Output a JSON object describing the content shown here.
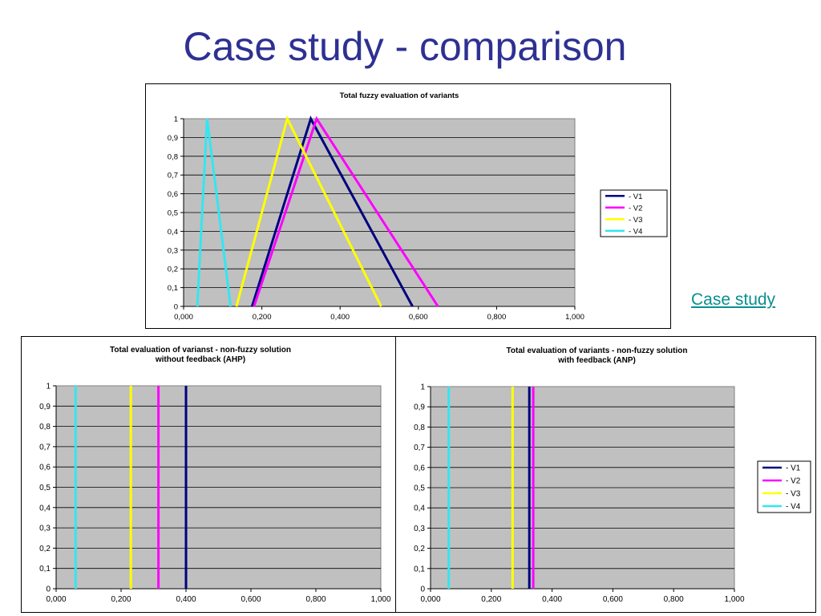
{
  "slide": {
    "title": "Case study - comparison",
    "link_text": "Case study"
  },
  "chart_data": [
    {
      "type": "line",
      "title": "Total fuzzy evaluation of variants",
      "subtitle": "",
      "xlabel": "",
      "ylabel": "",
      "xlim": [
        0,
        1
      ],
      "ylim": [
        0,
        1
      ],
      "x_ticks": [
        "0,000",
        "0,200",
        "0,400",
        "0,600",
        "0,800",
        "1,000"
      ],
      "y_ticks": [
        "0",
        "0,1",
        "0,2",
        "0,3",
        "0,4",
        "0,5",
        "0,6",
        "0,7",
        "0,8",
        "0,9",
        "1"
      ],
      "plot_background": "#c0c0c0",
      "grid": "horizontal",
      "legend": "right",
      "series": [
        {
          "name": "- V1",
          "color": "#000080",
          "x": [
            0.175,
            0.325,
            0.585
          ],
          "y": [
            0,
            1,
            0
          ]
        },
        {
          "name": "- V2",
          "color": "#ff00ff",
          "x": [
            0.18,
            0.34,
            0.65
          ],
          "y": [
            0,
            1,
            0
          ]
        },
        {
          "name": "- V3",
          "color": "#ffff00",
          "x": [
            0.135,
            0.265,
            0.505
          ],
          "y": [
            0,
            1,
            0
          ]
        },
        {
          "name": "- V4",
          "color": "#33e6f2",
          "x": [
            0.035,
            0.06,
            0.12
          ],
          "y": [
            0,
            1,
            0
          ]
        }
      ]
    },
    {
      "type": "line",
      "title": "Total evaluation of varianst - non-fuzzy solution",
      "subtitle": "without feedback (AHP)",
      "xlabel": "",
      "ylabel": "",
      "xlim": [
        0,
        1
      ],
      "ylim": [
        0,
        1
      ],
      "x_ticks": [
        "0,000",
        "0,200",
        "0,400",
        "0,600",
        "0,800",
        "1,000"
      ],
      "y_ticks": [
        "0",
        "0,1",
        "0,2",
        "0,3",
        "0,4",
        "0,5",
        "0,6",
        "0,7",
        "0,8",
        "0,9",
        "1"
      ],
      "plot_background": "#c0c0c0",
      "grid": "horizontal",
      "legend": "none",
      "series": [
        {
          "color": "#000080",
          "x": [
            0.4,
            0.4
          ],
          "y": [
            0,
            1
          ]
        },
        {
          "color": "#ff00ff",
          "x": [
            0.315,
            0.315
          ],
          "y": [
            0,
            1
          ]
        },
        {
          "color": "#ffff00",
          "x": [
            0.23,
            0.23
          ],
          "y": [
            0,
            1
          ]
        },
        {
          "color": "#33e6f2",
          "x": [
            0.06,
            0.06
          ],
          "y": [
            0,
            1
          ]
        }
      ]
    },
    {
      "type": "line",
      "title": "Total evaluation of variants - non-fuzzy solution",
      "subtitle": "with feedback (ANP)",
      "xlabel": "",
      "ylabel": "",
      "xlim": [
        0,
        1
      ],
      "ylim": [
        0,
        1
      ],
      "x_ticks": [
        "0,000",
        "0,200",
        "0,400",
        "0,600",
        "0,800",
        "1,000"
      ],
      "y_ticks": [
        "0",
        "0,1",
        "0,2",
        "0,3",
        "0,4",
        "0,5",
        "0,6",
        "0,7",
        "0,8",
        "0,9",
        "1"
      ],
      "plot_background": "#c0c0c0",
      "grid": "horizontal",
      "legend": "right",
      "series": [
        {
          "name": "- V1",
          "color": "#000080",
          "x": [
            0.325,
            0.325
          ],
          "y": [
            0,
            1
          ]
        },
        {
          "name": "- V2",
          "color": "#ff00ff",
          "x": [
            0.338,
            0.338
          ],
          "y": [
            0,
            1
          ]
        },
        {
          "name": "- V3",
          "color": "#ffff00",
          "x": [
            0.27,
            0.27
          ],
          "y": [
            0,
            1
          ]
        },
        {
          "name": "- V4",
          "color": "#33e6f2",
          "x": [
            0.06,
            0.06
          ],
          "y": [
            0,
            1
          ]
        }
      ]
    }
  ]
}
